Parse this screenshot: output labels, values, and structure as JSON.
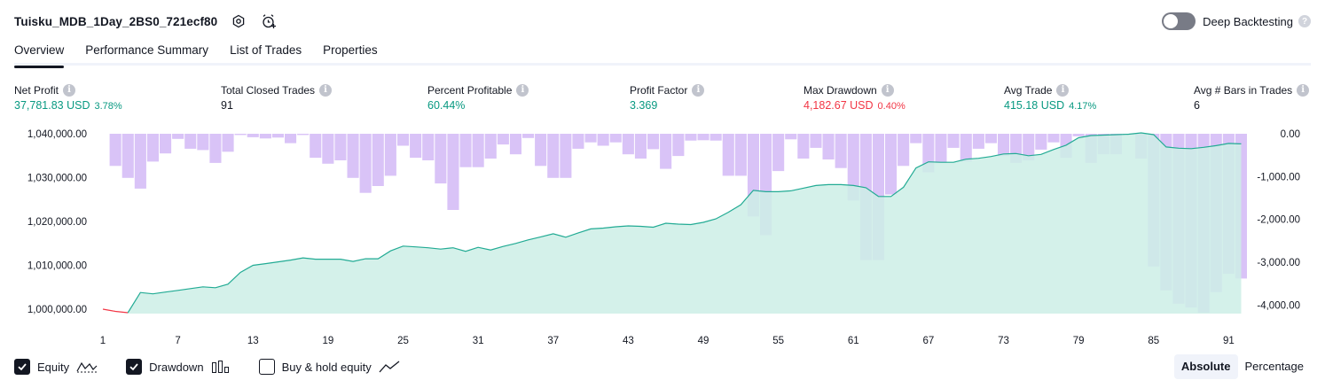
{
  "header": {
    "title": "Tuisku_MDB_1Day_2BS0_721ecf80",
    "settings_icon": "gear-icon",
    "alert_icon": "alarm-clock-add-icon"
  },
  "deep_backtesting": {
    "label": "Deep Backtesting",
    "enabled": false
  },
  "tabs": [
    {
      "label": "Overview",
      "active": true
    },
    {
      "label": "Performance Summary",
      "active": false
    },
    {
      "label": "List of Trades",
      "active": false
    },
    {
      "label": "Properties",
      "active": false
    }
  ],
  "metrics": {
    "net_profit": {
      "label": "Net Profit",
      "value": "37,781.83 USD",
      "pct": "3.78%"
    },
    "total_closed_trades": {
      "label": "Total Closed Trades",
      "value": "91"
    },
    "percent_profitable": {
      "label": "Percent Profitable",
      "value": "60.44%"
    },
    "profit_factor": {
      "label": "Profit Factor",
      "value": "3.369"
    },
    "max_drawdown": {
      "label": "Max Drawdown",
      "value": "4,182.67 USD",
      "pct": "0.40%"
    },
    "avg_trade": {
      "label": "Avg Trade",
      "value": "415.18 USD",
      "pct": "4.17%"
    },
    "avg_bars": {
      "label": "Avg # Bars in Trades",
      "value": "6"
    }
  },
  "colors": {
    "equity_line": "#22ab94",
    "equity_negative_line": "#f23645",
    "equity_fill": "#cdeee6",
    "drawdown_bar": "#d9c3f7",
    "positive": "#089981",
    "negative": "#f23645"
  },
  "chart_data": {
    "type": "area",
    "x_ticks": [
      "1",
      "7",
      "13",
      "19",
      "25",
      "31",
      "37",
      "43",
      "49",
      "55",
      "61",
      "67",
      "73",
      "79",
      "85",
      "91"
    ],
    "y_left_ticks": [
      "1,040,000.00",
      "1,030,000.00",
      "1,020,000.00",
      "1,010,000.00",
      "1,000,000.00"
    ],
    "y_right_ticks": [
      "0.00",
      "-1,000.00",
      "-2,000.00",
      "-3,000.00",
      "-4,000.00"
    ],
    "y_left_range": [
      999000,
      1040000
    ],
    "y_right_range": [
      -4200,
      0
    ],
    "series": [
      {
        "name": "Equity",
        "axis": "left",
        "x": [
          1,
          2,
          3,
          4,
          5,
          6,
          7,
          8,
          9,
          10,
          11,
          12,
          13,
          14,
          15,
          16,
          17,
          18,
          19,
          20,
          21,
          22,
          23,
          24,
          25,
          26,
          27,
          28,
          29,
          30,
          31,
          32,
          33,
          34,
          35,
          36,
          37,
          38,
          39,
          40,
          41,
          42,
          43,
          44,
          45,
          46,
          47,
          48,
          49,
          50,
          51,
          52,
          53,
          54,
          55,
          56,
          57,
          58,
          59,
          60,
          61,
          62,
          63,
          64,
          65,
          66,
          67,
          68,
          69,
          70,
          71,
          72,
          73,
          74,
          75,
          76,
          77,
          78,
          79,
          80,
          81,
          82,
          83,
          84,
          85,
          86,
          87,
          88,
          89,
          90,
          91,
          92
        ],
        "values": [
          1000000,
          999500,
          999200,
          1003800,
          1003500,
          1003900,
          1004300,
          1004700,
          1005100,
          1004900,
          1005700,
          1008400,
          1010000,
          1010400,
          1010800,
          1011200,
          1011700,
          1011400,
          1011400,
          1011400,
          1010900,
          1011500,
          1011500,
          1013300,
          1014400,
          1014200,
          1014000,
          1013700,
          1014000,
          1013200,
          1014100,
          1013500,
          1014300,
          1015000,
          1015800,
          1016500,
          1017200,
          1016400,
          1017400,
          1018300,
          1018500,
          1018800,
          1019000,
          1018900,
          1018700,
          1019600,
          1019400,
          1019300,
          1019800,
          1020600,
          1022100,
          1023800,
          1027100,
          1026800,
          1026800,
          1027000,
          1027600,
          1028200,
          1028400,
          1028400,
          1028200,
          1027700,
          1025700,
          1025700,
          1027800,
          1032200,
          1033600,
          1033500,
          1033500,
          1034200,
          1034400,
          1034800,
          1035400,
          1035500,
          1035000,
          1035300,
          1036400,
          1037400,
          1039100,
          1039600,
          1039700,
          1039800,
          1039900,
          1040200,
          1039800,
          1037000,
          1036700,
          1036600,
          1036900,
          1037300,
          1037800,
          1037700
        ]
      },
      {
        "name": "Drawdown",
        "axis": "right",
        "x": [
          1,
          2,
          3,
          4,
          5,
          6,
          7,
          8,
          9,
          10,
          11,
          12,
          13,
          14,
          15,
          16,
          17,
          18,
          19,
          20,
          21,
          22,
          23,
          24,
          25,
          26,
          27,
          28,
          29,
          30,
          31,
          32,
          33,
          34,
          35,
          36,
          37,
          38,
          39,
          40,
          41,
          42,
          43,
          44,
          45,
          46,
          47,
          48,
          49,
          50,
          51,
          52,
          53,
          54,
          55,
          56,
          57,
          58,
          59,
          60,
          61,
          62,
          63,
          64,
          65,
          66,
          67,
          68,
          69,
          70,
          71,
          72,
          73,
          74,
          75,
          76,
          77,
          78,
          79,
          80,
          81,
          82,
          83,
          84,
          85,
          86,
          87,
          88,
          89,
          90,
          91,
          92
        ],
        "values": [
          0,
          -750,
          -1030,
          -1280,
          -650,
          -460,
          -120,
          -350,
          -380,
          -680,
          -420,
          -30,
          -80,
          -110,
          -90,
          -220,
          -30,
          -560,
          -700,
          -620,
          -1030,
          -1380,
          -1220,
          -980,
          -280,
          -560,
          -620,
          -1160,
          -1780,
          -780,
          -780,
          -580,
          -250,
          -480,
          -100,
          -750,
          -1030,
          -1030,
          -350,
          -200,
          -280,
          -200,
          -480,
          -580,
          -360,
          -820,
          -520,
          -160,
          -150,
          -160,
          -980,
          -980,
          -1930,
          -2370,
          -870,
          -130,
          -580,
          -330,
          -600,
          -800,
          -1560,
          -2950,
          -2950,
          -1420,
          -750,
          -220,
          -900,
          -680,
          -330,
          -650,
          -350,
          -220,
          -520,
          -680,
          -620,
          -370,
          -200,
          -560,
          -60,
          -680,
          -480,
          -480,
          -30,
          -580,
          -3100,
          -3660,
          -3970,
          -4060,
          -4180,
          -3700,
          -3270,
          -3380
        ]
      }
    ]
  },
  "legend": {
    "equity": {
      "label": "Equity",
      "checked": true,
      "icon": "equity-line-icon"
    },
    "drawdown": {
      "label": "Drawdown",
      "checked": true,
      "icon": "drawdown-bars-icon"
    },
    "buy_hold": {
      "label": "Buy & hold equity",
      "checked": false,
      "icon": "buy-hold-line-icon"
    }
  },
  "view_mode": {
    "absolute_label": "Absolute",
    "percentage_label": "Percentage",
    "selected": "Absolute"
  }
}
